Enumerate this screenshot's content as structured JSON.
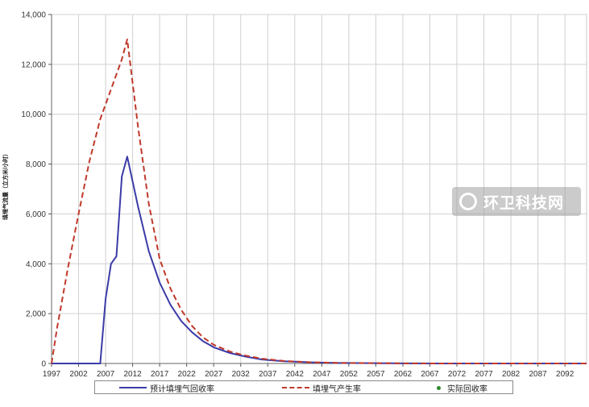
{
  "chart_data": {
    "type": "line",
    "ylabel": "填埋气流量（立方米/小时）",
    "xlim": [
      1997,
      2096
    ],
    "ylim": [
      0,
      14000
    ],
    "y_ticks": [
      "0",
      "2,000",
      "4,000",
      "6,000",
      "8,000",
      "10,000",
      "12,000",
      "14,000"
    ],
    "x_ticks": [
      "1997",
      "2002",
      "2007",
      "2012",
      "2017",
      "2022",
      "2027",
      "2032",
      "2037",
      "2042",
      "2047",
      "2052",
      "2057",
      "2062",
      "2067",
      "2072",
      "2077",
      "2082",
      "2087",
      "2092"
    ],
    "grid": true,
    "legend_position": "bottom",
    "series": [
      {
        "name": "预计填埋气回收率",
        "color": "#3b3ba8",
        "style": "solid",
        "x": [
          1997,
          2005,
          2006,
          2007,
          2008,
          2009,
          2010,
          2011,
          2013,
          2015,
          2017,
          2019,
          2021,
          2023,
          2025,
          2027,
          2030,
          2033,
          2036,
          2040,
          2045,
          2050,
          2060,
          2070,
          2096
        ],
        "y": [
          0,
          0,
          0,
          2600,
          4000,
          4300,
          7500,
          8300,
          6300,
          4500,
          3250,
          2350,
          1700,
          1250,
          900,
          650,
          420,
          270,
          160,
          90,
          45,
          20,
          5,
          0,
          0
        ]
      },
      {
        "name": "填埋气产生率",
        "color": "#c0392b",
        "style": "dashed",
        "x": [
          1997,
          1998,
          2000,
          2002,
          2004,
          2006,
          2008,
          2010,
          2011,
          2013,
          2015,
          2017,
          2019,
          2021,
          2023,
          2025,
          2027,
          2030,
          2033,
          2036,
          2040,
          2045,
          2050,
          2060,
          2070,
          2096
        ],
        "y": [
          0,
          1400,
          3800,
          6000,
          8100,
          9800,
          11000,
          12200,
          13000,
          9500,
          6400,
          4200,
          3000,
          2150,
          1500,
          1050,
          750,
          480,
          310,
          190,
          100,
          50,
          25,
          5,
          0,
          0
        ]
      },
      {
        "name": "实际回收率",
        "color": "#2e8b2e",
        "style": "marker",
        "x": [],
        "y": []
      }
    ]
  },
  "watermark": {
    "text": "环卫科技网"
  }
}
